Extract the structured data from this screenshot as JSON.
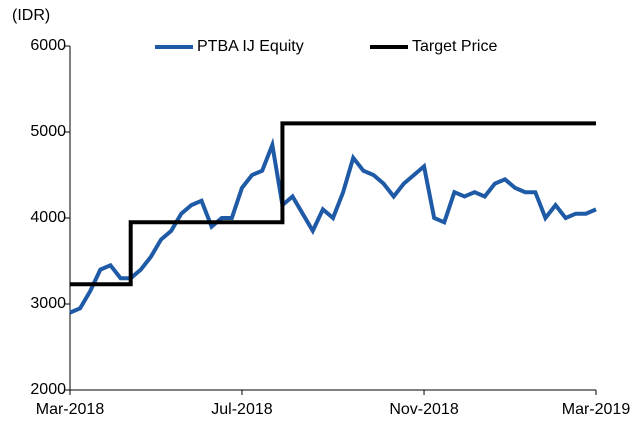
{
  "chart_data": {
    "type": "line",
    "y_unit_label": "(IDR)",
    "categories": [
      "Mar-2018",
      null,
      null,
      null,
      null,
      null,
      null,
      null,
      null,
      null,
      null,
      null,
      null,
      null,
      null,
      null,
      null,
      "Jul-2018",
      null,
      null,
      null,
      null,
      null,
      null,
      null,
      null,
      null,
      null,
      null,
      null,
      null,
      null,
      null,
      null,
      null,
      "Nov-2018",
      null,
      null,
      null,
      null,
      null,
      null,
      null,
      null,
      null,
      null,
      null,
      null,
      null,
      null,
      null,
      null,
      "Mar-2019"
    ],
    "series": [
      {
        "name": "PTBA IJ Equity",
        "color": "#1f5aa6",
        "values": [
          2900,
          2950,
          3150,
          3400,
          3450,
          3300,
          3300,
          3400,
          3550,
          3750,
          3850,
          4050,
          4150,
          4200,
          3900,
          4000,
          4000,
          4350,
          4500,
          4550,
          4850,
          4150,
          4250,
          4050,
          3850,
          4100,
          4000,
          4300,
          4700,
          4550,
          4500,
          4400,
          4250,
          4400,
          4500,
          4600,
          4000,
          3950,
          4300,
          4250,
          4300,
          4250,
          4400,
          4450,
          4350,
          4300,
          4300,
          4000,
          4150,
          4000,
          4050,
          4050,
          4100
        ]
      },
      {
        "name": "Target Price",
        "color": "#000000",
        "step": true,
        "values": [
          3230,
          3230,
          3230,
          3230,
          3230,
          3230,
          3950,
          3950,
          3950,
          3950,
          3950,
          3950,
          3950,
          3950,
          3950,
          3950,
          3950,
          3950,
          3950,
          3950,
          3950,
          5100,
          5100,
          5100,
          5100,
          5100,
          5100,
          5100,
          5100,
          5100,
          5100,
          5100,
          5100,
          5100,
          5100,
          5100,
          5100,
          5100,
          5100,
          5100,
          5100,
          5100,
          5100,
          5100,
          5100,
          5100,
          5100,
          5100,
          5100,
          5100,
          5100,
          5100,
          5100
        ]
      }
    ],
    "ylim": [
      2000,
      6000
    ],
    "yticks": [
      2000,
      3000,
      4000,
      5000,
      6000
    ],
    "grid": false,
    "legend": "top"
  }
}
